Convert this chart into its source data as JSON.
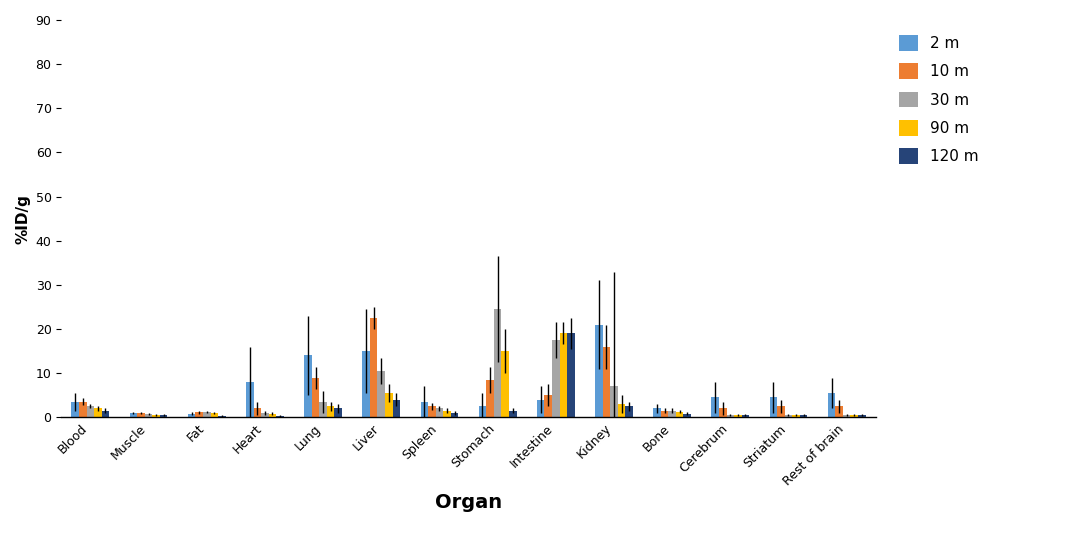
{
  "categories": [
    "Blood",
    "Muscle",
    "Fat",
    "Heart",
    "Lung",
    "Liver",
    "Spleen",
    "Stomach",
    "Intestine",
    "Kidney",
    "Bone",
    "Cerebrum",
    "Striatum",
    "Rest of brain"
  ],
  "series_labels": [
    "2 m",
    "10 m",
    "30 m",
    "90 m",
    "120 m"
  ],
  "colors": [
    "#5B9BD5",
    "#ED7D31",
    "#A5A5A5",
    "#FFC000",
    "#264478"
  ],
  "values": [
    [
      3.5,
      1.0,
      0.8,
      8.0,
      14.0,
      15.0,
      3.5,
      2.5,
      4.0,
      21.0,
      2.0,
      4.5,
      4.5,
      5.5
    ],
    [
      3.5,
      1.0,
      1.1,
      2.0,
      9.0,
      22.5,
      2.5,
      8.5,
      5.0,
      16.0,
      1.5,
      2.0,
      2.5,
      2.5
    ],
    [
      2.5,
      0.8,
      1.2,
      1.0,
      3.5,
      10.5,
      2.0,
      24.5,
      17.5,
      7.0,
      1.5,
      0.5,
      0.5,
      0.5
    ],
    [
      2.0,
      0.5,
      1.0,
      0.8,
      2.5,
      5.5,
      1.5,
      15.0,
      19.0,
      3.0,
      1.3,
      0.5,
      0.5,
      0.5
    ],
    [
      1.5,
      0.5,
      0.3,
      0.3,
      2.0,
      4.0,
      1.0,
      1.5,
      19.0,
      2.5,
      0.8,
      0.5,
      0.5,
      0.5
    ]
  ],
  "errors": [
    [
      2.0,
      0.3,
      0.3,
      8.0,
      9.0,
      9.5,
      3.5,
      3.0,
      3.0,
      10.0,
      1.0,
      3.5,
      3.5,
      3.5
    ],
    [
      0.8,
      0.3,
      0.3,
      1.5,
      2.5,
      2.5,
      0.8,
      3.0,
      2.5,
      5.0,
      0.5,
      1.5,
      1.5,
      1.5
    ],
    [
      0.5,
      0.2,
      0.3,
      0.5,
      2.5,
      3.0,
      0.5,
      12.0,
      4.0,
      26.0,
      0.5,
      0.3,
      0.3,
      0.3
    ],
    [
      0.5,
      0.2,
      0.3,
      0.3,
      1.0,
      2.0,
      0.5,
      5.0,
      2.5,
      2.0,
      0.3,
      0.3,
      0.3,
      0.3
    ],
    [
      0.5,
      0.2,
      0.2,
      0.2,
      1.0,
      1.5,
      0.5,
      0.5,
      3.5,
      1.0,
      0.3,
      0.3,
      0.3,
      0.3
    ]
  ],
  "ylabel": "%ID/g",
  "xlabel": "Organ",
  "ylim": [
    0,
    90
  ],
  "yticks": [
    0,
    10,
    20,
    30,
    40,
    50,
    60,
    70,
    80,
    90
  ],
  "bar_width": 0.13,
  "figsize": [
    10.68,
    5.35
  ],
  "dpi": 100
}
